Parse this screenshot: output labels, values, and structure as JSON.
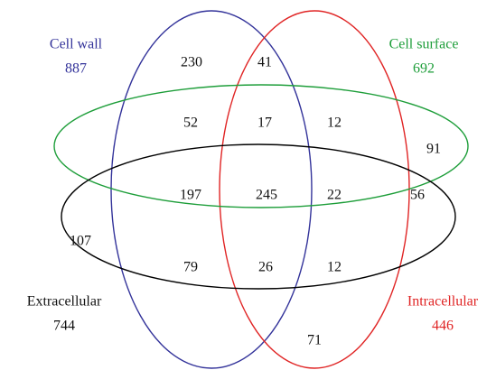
{
  "sets": [
    {
      "name": "Cell wall",
      "total": 887,
      "color": "#33339a"
    },
    {
      "name": "Intracellular",
      "total": 446,
      "color": "#e02424"
    },
    {
      "name": "Cell surface",
      "total": 692,
      "color": "#1e9e3a"
    },
    {
      "name": "Extracellular",
      "total": 744,
      "color": "#000000"
    }
  ],
  "regions": [
    230,
    41,
    52,
    17,
    12,
    91,
    197,
    245,
    22,
    56,
    107,
    79,
    26,
    12,
    71
  ]
}
